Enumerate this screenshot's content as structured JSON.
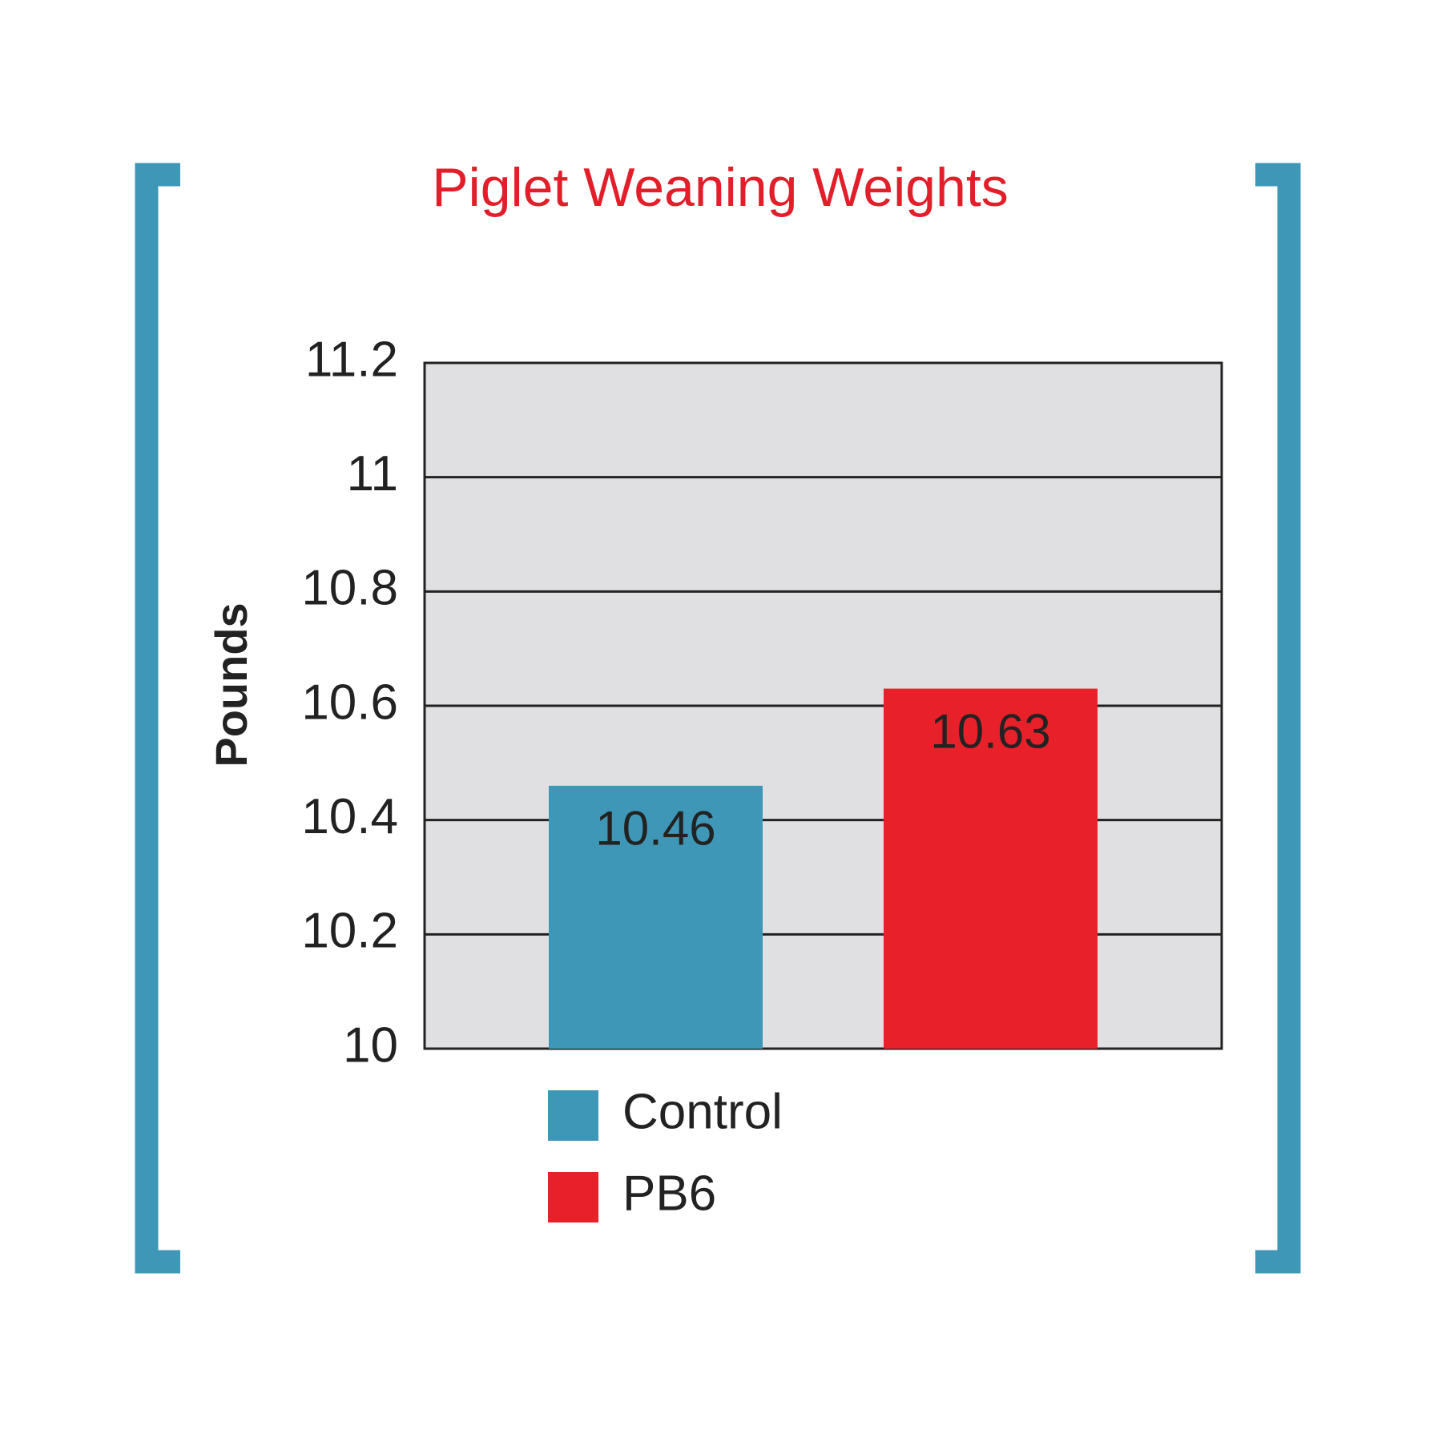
{
  "chart_data": {
    "type": "bar",
    "title": "Piglet Weaning Weights",
    "y_label": "Pounds",
    "categories": [
      null
    ],
    "series": [
      {
        "name": "Control",
        "color": "#3e97b6",
        "values": [
          10.46
        ]
      },
      {
        "name": "PB6",
        "color": "#e8202a",
        "values": [
          10.63
        ]
      }
    ],
    "ylim": [
      10,
      11.2
    ],
    "yticks": [
      10,
      10.2,
      10.4,
      10.6,
      10.8,
      11,
      11.2
    ],
    "grid": true
  }
}
